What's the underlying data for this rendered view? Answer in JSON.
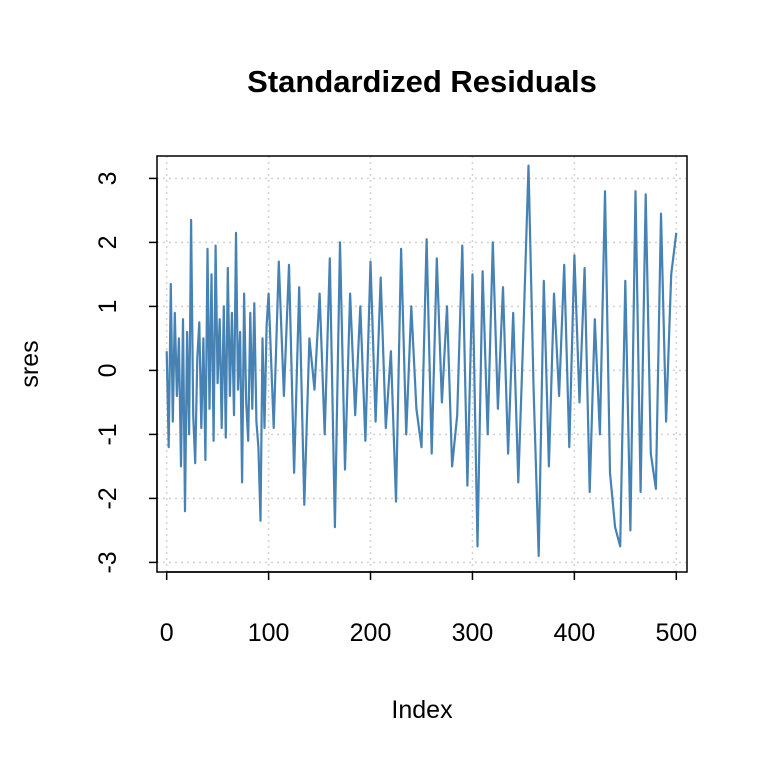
{
  "chart_data": {
    "type": "line",
    "title": "Standardized Residuals",
    "xlabel": "Index",
    "ylabel": "sres",
    "xlim": [
      -9.5,
      510.5
    ],
    "ylim": [
      -3.15,
      3.35
    ],
    "x_ticks": [
      0,
      100,
      200,
      300,
      400,
      500
    ],
    "x_tick_labels": [
      "0",
      "100",
      "200",
      "300",
      "400",
      "500"
    ],
    "y_ticks": [
      -3,
      -2,
      -1,
      0,
      1,
      2,
      3
    ],
    "y_tick_labels": [
      "-3",
      "-2",
      "-1",
      "0",
      "1",
      "2",
      "3"
    ],
    "grid": true,
    "line_color": "#4682B4",
    "grid_color": "#D3D3D3",
    "series": [
      {
        "x": [
          0,
          2,
          4,
          6,
          8,
          10,
          12,
          14,
          16,
          18,
          20,
          22,
          24,
          26,
          28,
          30,
          32,
          34,
          36,
          38,
          40,
          42,
          44,
          46,
          48,
          50,
          52,
          54,
          56,
          58,
          60,
          62,
          64,
          66,
          68,
          70,
          72,
          74,
          76,
          78,
          80,
          82,
          84,
          86,
          88,
          90,
          92,
          94,
          96,
          98,
          100,
          105,
          110,
          115,
          120,
          125,
          130,
          135,
          140,
          145,
          150,
          155,
          160,
          165,
          170,
          175,
          180,
          185,
          190,
          195,
          200,
          205,
          210,
          215,
          220,
          225,
          230,
          235,
          240,
          245,
          250,
          255,
          260,
          265,
          270,
          275,
          280,
          285,
          290,
          295,
          300,
          305,
          310,
          315,
          320,
          325,
          330,
          335,
          340,
          345,
          350,
          355,
          360,
          365,
          370,
          375,
          380,
          385,
          390,
          395,
          400,
          405,
          410,
          415,
          420,
          425,
          430,
          435,
          440,
          445,
          450,
          455,
          460,
          465,
          470,
          475,
          480,
          485,
          490,
          495,
          500
        ],
        "y": [
          0.3,
          -1.2,
          1.35,
          -0.8,
          0.9,
          -0.4,
          0.5,
          -1.5,
          0.8,
          -2.2,
          0.6,
          -1.0,
          2.35,
          -0.7,
          -1.45,
          0.2,
          0.75,
          -0.9,
          0.5,
          -1.4,
          1.9,
          -0.6,
          1.5,
          -1.1,
          1.95,
          -0.2,
          0.8,
          -0.9,
          1.0,
          -1.05,
          1.6,
          -0.4,
          0.9,
          -0.7,
          2.15,
          -0.3,
          0.6,
          -1.75,
          1.2,
          -0.5,
          -1.1,
          0.9,
          -0.6,
          1.05,
          -0.8,
          -1.2,
          -2.35,
          0.5,
          -0.9,
          0.7,
          1.2,
          -0.9,
          1.7,
          -0.4,
          1.65,
          -1.6,
          1.3,
          -2.1,
          0.5,
          -0.3,
          1.2,
          -1.0,
          1.75,
          -2.45,
          2.0,
          -1.55,
          1.2,
          -0.7,
          1.0,
          -1.1,
          1.7,
          -0.8,
          1.45,
          -0.9,
          0.3,
          -2.05,
          1.9,
          -1.0,
          1.0,
          -0.6,
          -1.2,
          2.05,
          -1.3,
          1.75,
          -0.5,
          1.0,
          -1.5,
          -0.7,
          1.95,
          -1.8,
          1.5,
          -2.75,
          1.55,
          -1.0,
          2.0,
          -0.6,
          1.3,
          -1.3,
          0.9,
          -1.75,
          0.6,
          3.2,
          -0.3,
          -2.9,
          1.4,
          -1.5,
          1.2,
          -0.4,
          1.65,
          -1.2,
          1.8,
          -0.5,
          1.6,
          -1.9,
          0.8,
          -1.0,
          2.8,
          -1.6,
          -2.45,
          -2.75,
          1.4,
          -2.5,
          2.8,
          -1.9,
          2.75,
          -1.3,
          -1.85,
          2.45,
          -0.8,
          1.5,
          2.15
        ]
      }
    ]
  }
}
